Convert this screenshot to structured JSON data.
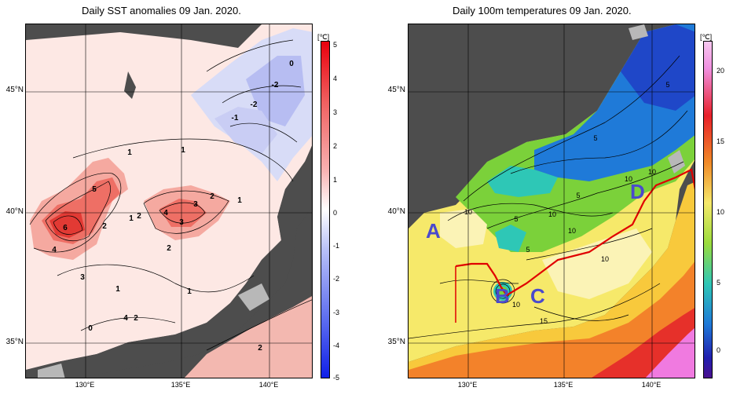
{
  "left_panel": {
    "title": "Daily SST anomalies 09 Jan. 2020.",
    "unit": "[℃]",
    "colorbar_ticks": [
      "5",
      "4",
      "3",
      "2",
      "1",
      "0",
      "-1",
      "-2",
      "-3",
      "-4",
      "-5"
    ],
    "contour_labels": [
      "6",
      "5",
      "4",
      "4",
      "3",
      "3",
      "3",
      "2",
      "2",
      "2",
      "2",
      "1",
      "1",
      "1",
      "1",
      "1",
      "0",
      "0",
      "-1",
      "-2",
      "-2",
      "4",
      "1",
      "2",
      "2"
    ]
  },
  "right_panel": {
    "title": "Daily 100m temperatures 09 Jan. 2020.",
    "unit": "[℃]",
    "colorbar_ticks": [
      "20",
      "15",
      "10",
      "5",
      "0"
    ],
    "contour_labels": [
      "5",
      "5",
      "5",
      "5",
      "10",
      "10",
      "10",
      "10",
      "10",
      "10",
      "15",
      "5",
      "10"
    ],
    "region_markers": [
      "A",
      "B",
      "C",
      "D"
    ]
  },
  "axes": {
    "lat_labels": [
      "45°N",
      "40°N",
      "35°N"
    ],
    "lon_labels": [
      "130°E",
      "135°E",
      "140°E"
    ]
  },
  "colors": {
    "land": "#4d4d4d",
    "coast_gray": "#b8b8b8",
    "section_line": "#e00000",
    "marker": "#4a4acc"
  }
}
